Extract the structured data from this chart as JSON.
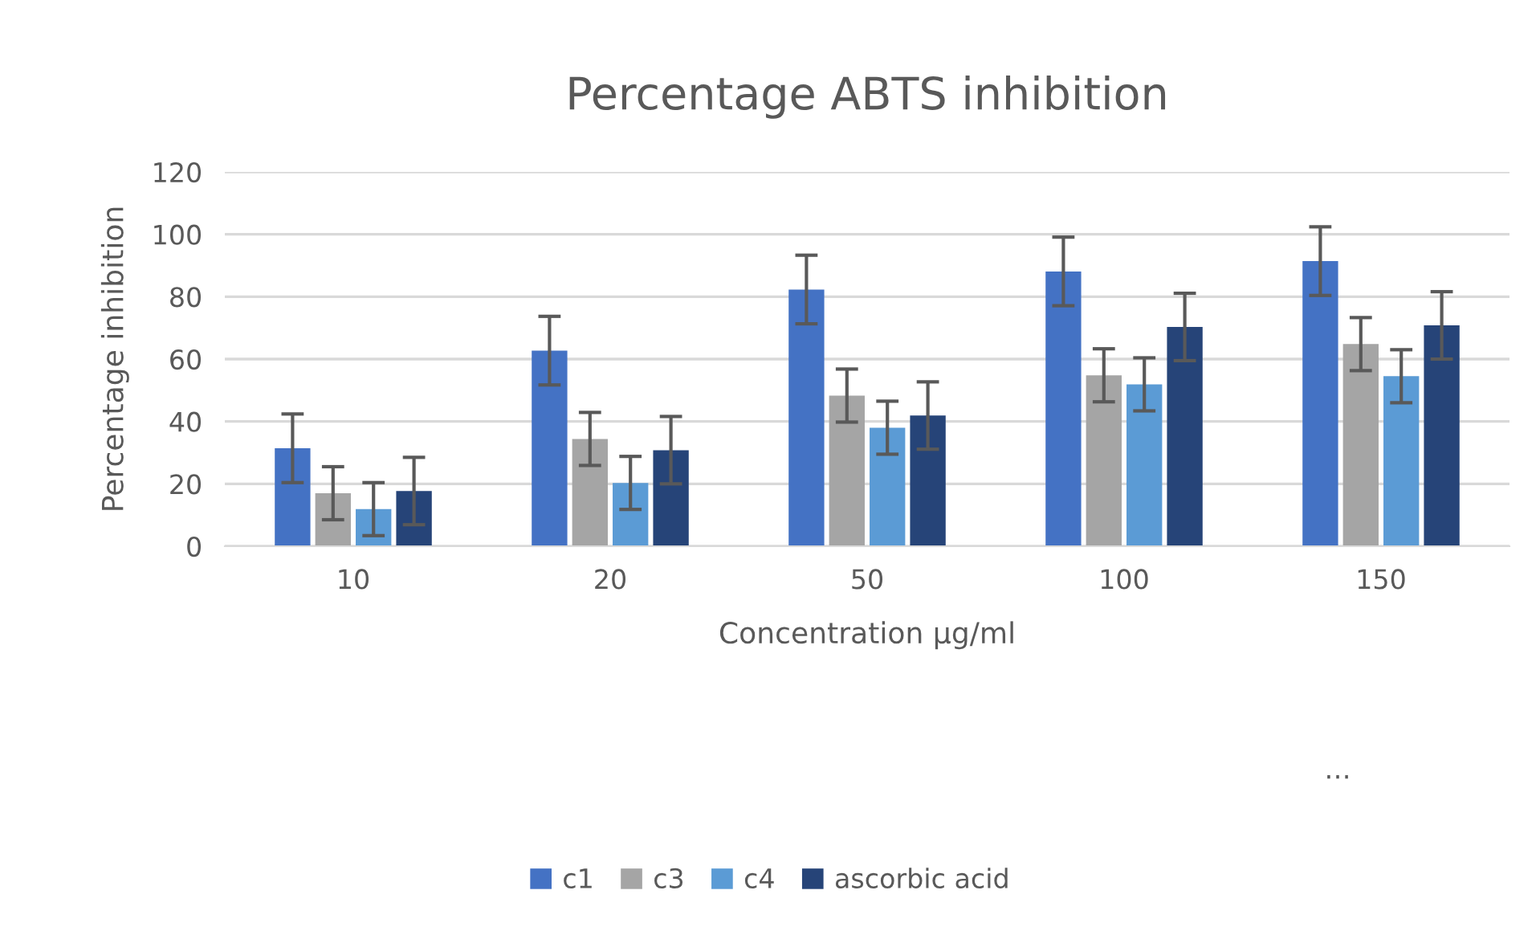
{
  "chart_data": {
    "type": "bar",
    "title": "Percentage ABTS inhibition",
    "xlabel": "Concentration µg/ml",
    "ylabel": "Percentage inhibition",
    "categories": [
      "10",
      "20",
      "50",
      "100",
      "150"
    ],
    "series": [
      {
        "name": "c1",
        "color": "#4472c4",
        "values": [
          31.4,
          62.7,
          82.3,
          88.1,
          91.4
        ],
        "errors": [
          11,
          11,
          11,
          11,
          11
        ]
      },
      {
        "name": "c3",
        "color": "#a5a5a5",
        "values": [
          17,
          34.4,
          48.3,
          54.8,
          64.8
        ],
        "errors": [
          8.5,
          8.5,
          8.5,
          8.5,
          8.5
        ]
      },
      {
        "name": "c4",
        "color": "#5b9bd5",
        "values": [
          11.9,
          20.3,
          38,
          51.9,
          54.5
        ],
        "errors": [
          8.5,
          8.5,
          8.5,
          8.5,
          8.5
        ]
      },
      {
        "name": "ascorbic acid",
        "color": "#264478",
        "values": [
          17.7,
          30.8,
          41.9,
          70.3,
          70.8
        ],
        "errors": [
          10.8,
          10.8,
          10.8,
          10.8,
          10.8
        ]
      }
    ],
    "ylim": [
      0,
      120
    ],
    "yticks": [
      0,
      20,
      40,
      60,
      80,
      100,
      120
    ],
    "grid": "y",
    "legend": "bottom",
    "annotations": [
      "…"
    ]
  }
}
